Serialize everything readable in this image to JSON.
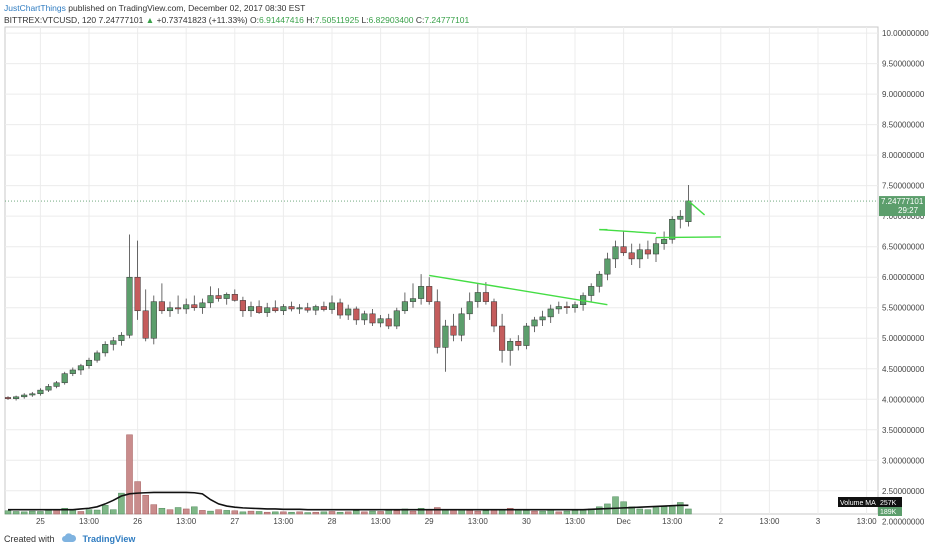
{
  "header": {
    "author": "JustChartThings",
    "published_text": " published on TradingView.com, December 02, 2017 08:30 EST",
    "symbol": "BITTREX:VTCUSD, 120",
    "last": "7.24777101",
    "change_arrow": "▲",
    "change": "+0.73741823 (+11.33%)",
    "o_label": "O:",
    "o_value": "6.91447416",
    "h_label": "H:",
    "h_value": "7.50511925",
    "l_label": "L:",
    "l_value": "6.82903400",
    "c_label": "C:",
    "c_value": "7.24777101"
  },
  "footer": {
    "created_with": "Created with",
    "brand": "TradingView"
  },
  "colors": {
    "up": "#5c9e6c",
    "down": "#c45c5c",
    "up_vol": "#7fb787",
    "down_vol": "#c98c8c",
    "trend": "#44dd44",
    "ma": "#111111",
    "last_bg": "#5c9e6c"
  },
  "chart_data": {
    "type": "candlestick",
    "ylim": [
      2.12,
      10.1
    ],
    "y_ticks": [
      "2.00000000",
      "2.50000000",
      "3.00000000",
      "3.50000000",
      "4.00000000",
      "4.50000000",
      "5.00000000",
      "5.50000000",
      "6.00000000",
      "6.50000000",
      "7.00000000",
      "7.50000000",
      "8.00000000",
      "8.50000000",
      "9.00000000",
      "9.50000000",
      "10.00000000"
    ],
    "x_ticks": [
      {
        "label": "25",
        "i": 4
      },
      {
        "label": "13:00",
        "i": 10
      },
      {
        "label": "26",
        "i": 16
      },
      {
        "label": "13:00",
        "i": 22
      },
      {
        "label": "27",
        "i": 28
      },
      {
        "label": "13:00",
        "i": 34
      },
      {
        "label": "28",
        "i": 40
      },
      {
        "label": "13:00",
        "i": 46
      },
      {
        "label": "29",
        "i": 52
      },
      {
        "label": "13:00",
        "i": 58
      },
      {
        "label": "30",
        "i": 64
      },
      {
        "label": "13:00",
        "i": 70
      },
      {
        "label": "Dec",
        "i": 76
      },
      {
        "label": "13:00",
        "i": 82
      },
      {
        "label": "2",
        "i": 88
      },
      {
        "label": "13:00",
        "i": 94
      },
      {
        "label": "3",
        "i": 100
      },
      {
        "label": "13:00",
        "i": 106
      }
    ],
    "last_price_label": "7.24777101",
    "countdown_label": "29:27",
    "volume_ma_label": "Volume MA",
    "volume_ma_value": "257K",
    "volume_value": "189K",
    "candles": [
      [
        4.03,
        4.05,
        3.99,
        4.01
      ],
      [
        4.01,
        4.06,
        3.98,
        4.04
      ],
      [
        4.04,
        4.1,
        4.01,
        4.07
      ],
      [
        4.07,
        4.12,
        4.04,
        4.09
      ],
      [
        4.09,
        4.18,
        4.06,
        4.15
      ],
      [
        4.15,
        4.25,
        4.12,
        4.21
      ],
      [
        4.21,
        4.3,
        4.18,
        4.27
      ],
      [
        4.27,
        4.45,
        4.24,
        4.42
      ],
      [
        4.42,
        4.52,
        4.38,
        4.48
      ],
      [
        4.48,
        4.58,
        4.4,
        4.55
      ],
      [
        4.55,
        4.68,
        4.5,
        4.64
      ],
      [
        4.64,
        4.8,
        4.6,
        4.76
      ],
      [
        4.76,
        4.95,
        4.7,
        4.9
      ],
      [
        4.9,
        5.02,
        4.8,
        4.96
      ],
      [
        4.96,
        5.1,
        4.88,
        5.05
      ],
      [
        5.05,
        6.7,
        5.0,
        6.0
      ],
      [
        6.0,
        6.6,
        5.3,
        5.45
      ],
      [
        5.45,
        5.8,
        4.95,
        5.0
      ],
      [
        5.0,
        5.7,
        4.9,
        5.6
      ],
      [
        5.6,
        5.9,
        5.4,
        5.45
      ],
      [
        5.45,
        5.6,
        5.35,
        5.5
      ],
      [
        5.5,
        5.7,
        5.4,
        5.48
      ],
      [
        5.48,
        5.65,
        5.4,
        5.55
      ],
      [
        5.55,
        5.7,
        5.45,
        5.5
      ],
      [
        5.5,
        5.65,
        5.4,
        5.58
      ],
      [
        5.58,
        5.85,
        5.5,
        5.7
      ],
      [
        5.7,
        5.82,
        5.6,
        5.65
      ],
      [
        5.65,
        5.75,
        5.55,
        5.72
      ],
      [
        5.72,
        5.8,
        5.6,
        5.62
      ],
      [
        5.62,
        5.68,
        5.35,
        5.45
      ],
      [
        5.45,
        5.6,
        5.35,
        5.52
      ],
      [
        5.52,
        5.62,
        5.4,
        5.42
      ],
      [
        5.42,
        5.58,
        5.35,
        5.5
      ],
      [
        5.5,
        5.62,
        5.42,
        5.45
      ],
      [
        5.45,
        5.56,
        5.38,
        5.52
      ],
      [
        5.52,
        5.6,
        5.44,
        5.48
      ],
      [
        5.48,
        5.56,
        5.4,
        5.5
      ],
      [
        5.5,
        5.58,
        5.42,
        5.46
      ],
      [
        5.46,
        5.55,
        5.38,
        5.52
      ],
      [
        5.52,
        5.6,
        5.44,
        5.47
      ],
      [
        5.47,
        5.7,
        5.4,
        5.58
      ],
      [
        5.58,
        5.65,
        5.32,
        5.38
      ],
      [
        5.38,
        5.55,
        5.3,
        5.48
      ],
      [
        5.48,
        5.52,
        5.22,
        5.3
      ],
      [
        5.3,
        5.45,
        5.22,
        5.4
      ],
      [
        5.4,
        5.48,
        5.2,
        5.25
      ],
      [
        5.25,
        5.38,
        5.18,
        5.32
      ],
      [
        5.32,
        5.4,
        5.15,
        5.2
      ],
      [
        5.2,
        5.5,
        5.15,
        5.45
      ],
      [
        5.45,
        5.75,
        5.4,
        5.6
      ],
      [
        5.6,
        5.9,
        5.5,
        5.65
      ],
      [
        5.65,
        6.05,
        5.55,
        5.85
      ],
      [
        5.85,
        6.0,
        5.55,
        5.6
      ],
      [
        5.6,
        5.8,
        4.75,
        4.85
      ],
      [
        4.85,
        5.3,
        4.45,
        5.2
      ],
      [
        5.2,
        5.4,
        4.95,
        5.05
      ],
      [
        5.05,
        5.5,
        4.95,
        5.4
      ],
      [
        5.4,
        5.75,
        5.3,
        5.6
      ],
      [
        5.6,
        5.9,
        5.5,
        5.75
      ],
      [
        5.75,
        5.92,
        5.55,
        5.6
      ],
      [
        5.6,
        5.65,
        5.1,
        5.2
      ],
      [
        5.2,
        5.4,
        4.6,
        4.8
      ],
      [
        4.8,
        5.0,
        4.55,
        4.95
      ],
      [
        4.95,
        5.05,
        4.8,
        4.88
      ],
      [
        4.88,
        5.25,
        4.82,
        5.2
      ],
      [
        5.2,
        5.35,
        5.1,
        5.3
      ],
      [
        5.3,
        5.45,
        5.2,
        5.35
      ],
      [
        5.35,
        5.55,
        5.25,
        5.48
      ],
      [
        5.48,
        5.6,
        5.4,
        5.52
      ],
      [
        5.52,
        5.6,
        5.4,
        5.5
      ],
      [
        5.5,
        5.6,
        5.42,
        5.55
      ],
      [
        5.55,
        5.75,
        5.45,
        5.7
      ],
      [
        5.7,
        5.9,
        5.6,
        5.85
      ],
      [
        5.85,
        6.1,
        5.75,
        6.05
      ],
      [
        6.05,
        6.4,
        5.95,
        6.3
      ],
      [
        6.3,
        6.6,
        6.15,
        6.5
      ],
      [
        6.5,
        6.75,
        6.35,
        6.4
      ],
      [
        6.4,
        6.55,
        6.2,
        6.3
      ],
      [
        6.3,
        6.55,
        6.15,
        6.45
      ],
      [
        6.45,
        6.6,
        6.3,
        6.38
      ],
      [
        6.38,
        6.65,
        6.25,
        6.55
      ],
      [
        6.55,
        6.75,
        6.45,
        6.62
      ],
      [
        6.62,
        7.0,
        6.55,
        6.95
      ],
      [
        6.95,
        7.1,
        6.8,
        7.0
      ],
      [
        6.91,
        7.51,
        6.83,
        7.25
      ]
    ],
    "volumes": [
      [
        0.45,
        1
      ],
      [
        0.35,
        1
      ],
      [
        0.3,
        1
      ],
      [
        0.4,
        1
      ],
      [
        0.35,
        1
      ],
      [
        0.5,
        1
      ],
      [
        0.55,
        0
      ],
      [
        0.8,
        1
      ],
      [
        0.5,
        1
      ],
      [
        0.35,
        0
      ],
      [
        0.6,
        1
      ],
      [
        0.55,
        1
      ],
      [
        1.2,
        1
      ],
      [
        0.6,
        1
      ],
      [
        2.9,
        1
      ],
      [
        11.0,
        0
      ],
      [
        4.5,
        0
      ],
      [
        2.6,
        0
      ],
      [
        1.3,
        0
      ],
      [
        0.8,
        1
      ],
      [
        0.6,
        0
      ],
      [
        0.9,
        1
      ],
      [
        0.7,
        0
      ],
      [
        1.0,
        1
      ],
      [
        0.5,
        0
      ],
      [
        0.4,
        1
      ],
      [
        0.6,
        0
      ],
      [
        0.5,
        1
      ],
      [
        0.45,
        0
      ],
      [
        0.3,
        1
      ],
      [
        0.4,
        0
      ],
      [
        0.35,
        1
      ],
      [
        0.25,
        0
      ],
      [
        0.3,
        1
      ],
      [
        0.3,
        0
      ],
      [
        0.25,
        1
      ],
      [
        0.3,
        0
      ],
      [
        0.2,
        1
      ],
      [
        0.25,
        0
      ],
      [
        0.3,
        1
      ],
      [
        0.35,
        0
      ],
      [
        0.25,
        1
      ],
      [
        0.3,
        0
      ],
      [
        0.45,
        1
      ],
      [
        0.3,
        0
      ],
      [
        0.4,
        1
      ],
      [
        0.35,
        0
      ],
      [
        0.5,
        1
      ],
      [
        0.45,
        0
      ],
      [
        0.7,
        1
      ],
      [
        0.4,
        0
      ],
      [
        0.8,
        1
      ],
      [
        0.6,
        0
      ],
      [
        0.9,
        0
      ],
      [
        0.6,
        1
      ],
      [
        0.55,
        0
      ],
      [
        0.6,
        1
      ],
      [
        0.5,
        0
      ],
      [
        0.4,
        0
      ],
      [
        0.45,
        1
      ],
      [
        0.55,
        0
      ],
      [
        0.6,
        1
      ],
      [
        0.8,
        0
      ],
      [
        0.6,
        1
      ],
      [
        0.5,
        1
      ],
      [
        0.4,
        0
      ],
      [
        0.4,
        1
      ],
      [
        0.6,
        1
      ],
      [
        0.3,
        0
      ],
      [
        0.4,
        1
      ],
      [
        0.5,
        1
      ],
      [
        0.6,
        1
      ],
      [
        0.7,
        1
      ],
      [
        1.0,
        1
      ],
      [
        1.4,
        1
      ],
      [
        2.4,
        1
      ],
      [
        1.7,
        1
      ],
      [
        1.0,
        1
      ],
      [
        0.7,
        1
      ],
      [
        0.6,
        1
      ],
      [
        0.9,
        1
      ],
      [
        1.0,
        1
      ],
      [
        1.2,
        1
      ],
      [
        1.6,
        1
      ],
      [
        0.7,
        1
      ]
    ],
    "volume_ma": [
      0.6,
      0.6,
      0.6,
      0.6,
      0.6,
      0.6,
      0.6,
      0.6,
      0.6,
      0.7,
      0.8,
      1.0,
      1.4,
      1.9,
      2.5,
      2.8,
      2.9,
      2.95,
      3.0,
      3.0,
      3.0,
      3.0,
      3.0,
      2.95,
      2.8,
      2.0,
      1.4,
      1.1,
      0.95,
      0.85,
      0.8,
      0.75,
      0.7,
      0.7,
      0.65,
      0.65,
      0.65,
      0.6,
      0.6,
      0.6,
      0.6,
      0.6,
      0.6,
      0.6,
      0.6,
      0.6,
      0.6,
      0.6,
      0.6,
      0.6,
      0.6,
      0.6,
      0.6,
      0.6,
      0.6,
      0.6,
      0.6,
      0.6,
      0.6,
      0.6,
      0.6,
      0.6,
      0.6,
      0.6,
      0.6,
      0.6,
      0.6,
      0.6,
      0.6,
      0.6,
      0.6,
      0.6,
      0.65,
      0.7,
      0.75,
      0.8,
      0.85,
      0.9,
      0.95,
      1.0,
      1.05,
      1.1,
      1.15,
      1.2,
      1.2
    ],
    "trendlines": [
      {
        "from": [
          52,
          6.03
        ],
        "to": [
          74,
          5.55
        ]
      },
      {
        "from": [
          73,
          6.78
        ],
        "to": [
          80,
          6.72
        ]
      },
      {
        "from": [
          73,
          6.78
        ],
        "to": [
          74,
          6.78
        ]
      },
      {
        "from": [
          80,
          6.65
        ],
        "to": [
          88,
          6.66
        ]
      },
      {
        "from": [
          84,
          7.25
        ],
        "to": [
          86,
          7.02
        ]
      }
    ]
  }
}
